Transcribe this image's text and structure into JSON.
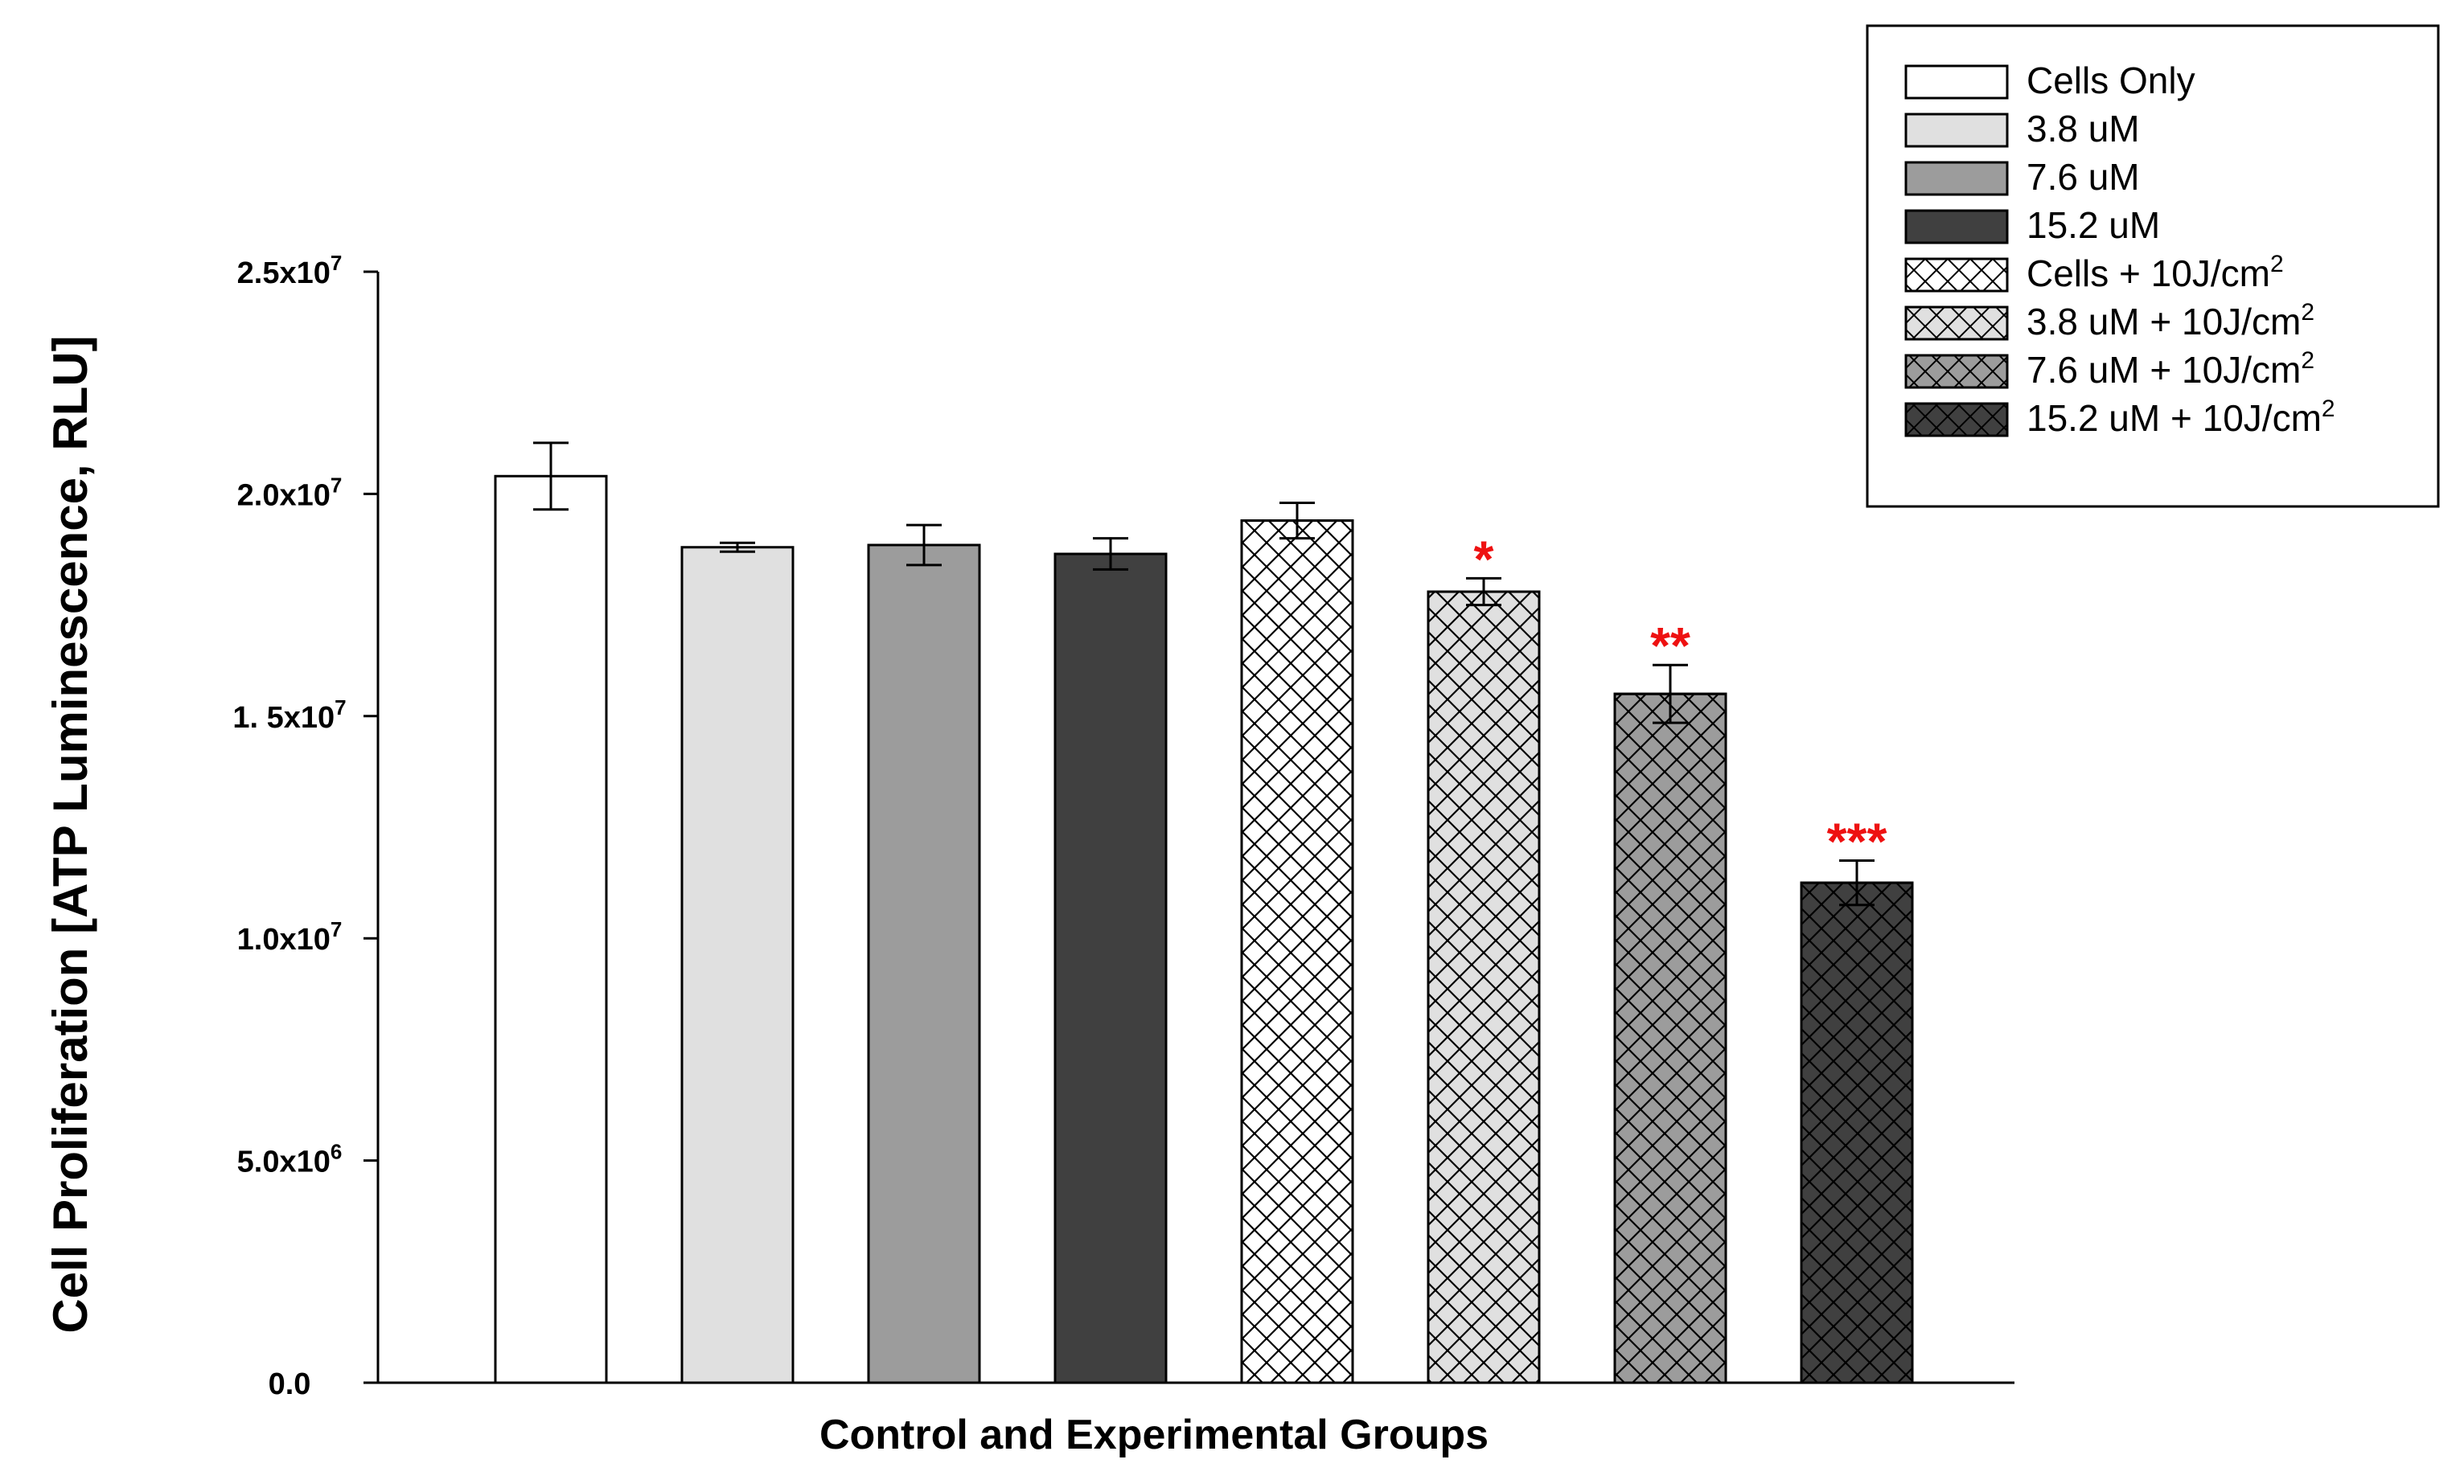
{
  "chart_data": {
    "type": "bar",
    "title": "",
    "xlabel": "Control and Experimental Groups",
    "ylabel": "Cell Proliferation [ATP Luminescence, RLU]",
    "ylim": [
      0,
      25000000
    ],
    "y_ticks": [
      {
        "value": 0,
        "mantissa": "0.0",
        "exp": ""
      },
      {
        "value": 5000000,
        "mantissa": "5.0x10",
        "exp": "6"
      },
      {
        "value": 10000000,
        "mantissa": "1.0x10",
        "exp": "7"
      },
      {
        "value": 15000000,
        "mantissa": "1. 5x10",
        "exp": "7"
      },
      {
        "value": 20000000,
        "mantissa": "2.0x10",
        "exp": "7"
      },
      {
        "value": 25000000,
        "mantissa": "2.5x10",
        "exp": "7"
      }
    ],
    "categories": [
      "Cells Only",
      "3.8 uM",
      "7.6 uM",
      "15.2 uM",
      "Cells + 10J/cm2",
      "3.8 uM + 10J/cm2",
      "7.6 uM + 10J/cm2",
      "15.2 uM + 10J/cm2"
    ],
    "values": [
      20400000,
      18800000,
      18850000,
      18650000,
      19400000,
      17800000,
      15500000,
      11250000
    ],
    "errors": [
      750000,
      100000,
      450000,
      350000,
      400000,
      300000,
      650000,
      500000
    ],
    "significance": [
      "",
      "",
      "",
      "",
      "",
      "*",
      "**",
      "***"
    ],
    "legend": {
      "position": "top-right",
      "entries": [
        {
          "text": "Cells Only",
          "sup": ""
        },
        {
          "text": "3.8 uM",
          "sup": ""
        },
        {
          "text": "7.6 uM",
          "sup": ""
        },
        {
          "text": "15.2 uM",
          "sup": ""
        },
        {
          "text": "Cells + 10J/cm",
          "sup": "2"
        },
        {
          "text": "3.8 uM + 10J/cm",
          "sup": "2"
        },
        {
          "text": "7.6 uM + 10J/cm",
          "sup": "2"
        },
        {
          "text": "15.2 uM + 10J/cm",
          "sup": "2"
        }
      ]
    },
    "series_styles": [
      {
        "fill": "#ffffff",
        "hatch": false
      },
      {
        "fill": "#e0e0e0",
        "hatch": false
      },
      {
        "fill": "#9c9c9c",
        "hatch": false
      },
      {
        "fill": "#404040",
        "hatch": false
      },
      {
        "fill": "#ffffff",
        "hatch": true
      },
      {
        "fill": "#e0e0e0",
        "hatch": true
      },
      {
        "fill": "#9c9c9c",
        "hatch": true
      },
      {
        "fill": "#404040",
        "hatch": true
      }
    ],
    "significance_color": "#ee1111",
    "grid": false
  }
}
